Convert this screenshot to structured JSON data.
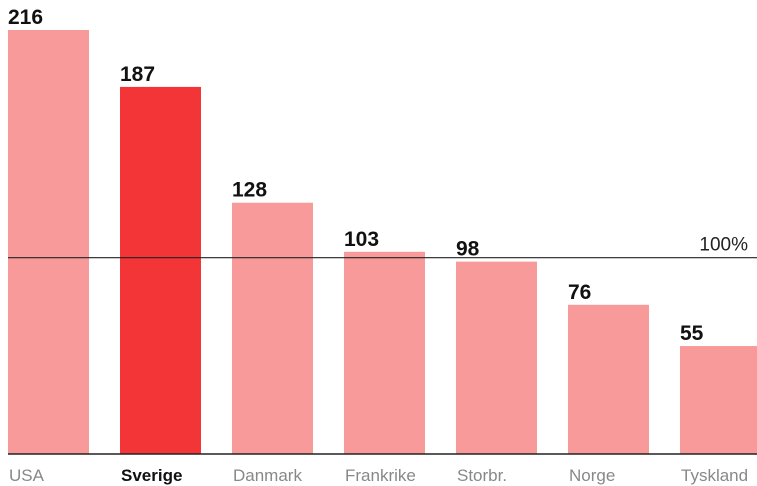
{
  "chart_data": {
    "type": "bar",
    "categories": [
      "USA",
      "Sverige",
      "Danmark",
      "Frankrike",
      "Storbr.",
      "Norge",
      "Tyskland"
    ],
    "values": [
      216,
      187,
      128,
      103,
      98,
      76,
      55
    ],
    "colors": [
      "#f99a9a",
      "#f43538",
      "#f99a9a",
      "#f99a9a",
      "#f99a9a",
      "#f99a9a",
      "#f99a9a"
    ],
    "highlight_color": "#f43538",
    "ylim": [
      0,
      216
    ],
    "reference_line": {
      "value": 100,
      "label": "100%"
    }
  }
}
